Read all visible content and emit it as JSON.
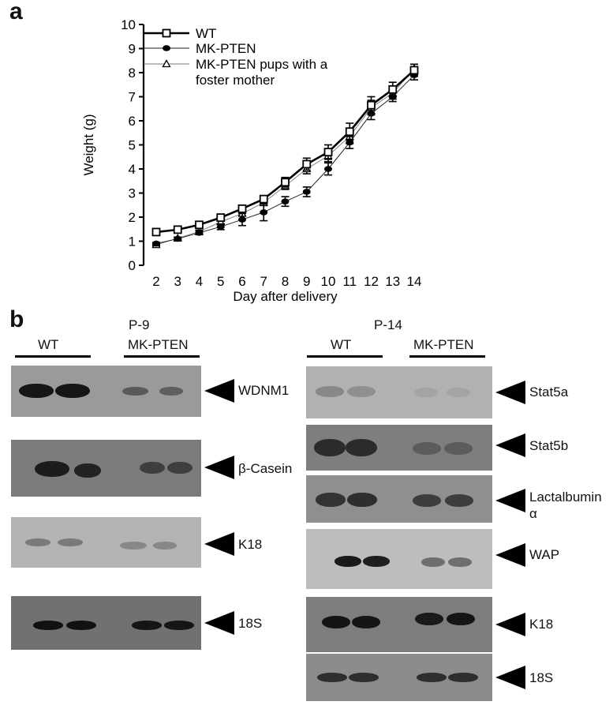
{
  "panel_a": {
    "letter": "a"
  },
  "panel_b": {
    "letter": "b",
    "p9": {
      "title": "P-9",
      "groups": [
        "WT",
        "MK-PTEN"
      ],
      "blots": [
        {
          "label": "WDNM1"
        },
        {
          "label": "β-Casein"
        },
        {
          "label": "K18"
        },
        {
          "label": "18S"
        }
      ]
    },
    "p14": {
      "title": "P-14",
      "groups": [
        "WT",
        "MK-PTEN"
      ],
      "blots": [
        {
          "label": "Stat5a"
        },
        {
          "label": "Stat5b"
        },
        {
          "label": "Lactalbumin",
          "label2": "α"
        },
        {
          "label": "WAP"
        },
        {
          "label": "K18"
        },
        {
          "label": "18S"
        }
      ]
    }
  },
  "chart_data": {
    "type": "line",
    "xlabel": "Day after delivery",
    "ylabel": "Weight (g)",
    "x": [
      2,
      3,
      4,
      5,
      6,
      7,
      8,
      9,
      10,
      11,
      12,
      13,
      14
    ],
    "xlim": [
      2,
      14
    ],
    "ylim": [
      0,
      10
    ],
    "yticks": [
      0,
      1,
      2,
      3,
      4,
      5,
      6,
      7,
      8,
      9,
      10
    ],
    "legend_position": "top-left",
    "series": [
      {
        "name": "WT",
        "marker": "open-square",
        "values": [
          1.38,
          1.48,
          1.68,
          1.98,
          2.35,
          2.75,
          3.45,
          4.2,
          4.7,
          5.55,
          6.65,
          7.3,
          8.1
        ],
        "errors": [
          0.05,
          0.05,
          0.06,
          0.08,
          0.1,
          0.12,
          0.2,
          0.25,
          0.3,
          0.35,
          0.35,
          0.3,
          0.25
        ]
      },
      {
        "name": "MK-PTEN",
        "marker": "filled-circle",
        "values": [
          0.9,
          1.1,
          1.35,
          1.6,
          1.9,
          2.2,
          2.65,
          3.05,
          4.0,
          5.1,
          6.3,
          7.0,
          7.9
        ],
        "errors": [
          0.05,
          0.06,
          0.08,
          0.12,
          0.25,
          0.35,
          0.2,
          0.2,
          0.25,
          0.25,
          0.25,
          0.2,
          0.2
        ]
      },
      {
        "name": "MK-PTEN pups with a foster mother",
        "marker": "open-triangle",
        "values": [
          0.85,
          1.12,
          1.4,
          1.8,
          2.15,
          2.6,
          3.3,
          4.0,
          4.55,
          5.35,
          6.55,
          7.15,
          8.15
        ],
        "errors": [
          0.05,
          0.05,
          0.06,
          0.08,
          0.1,
          0.12,
          0.15,
          0.2,
          0.25,
          0.3,
          0.3,
          0.25,
          0.2
        ]
      }
    ]
  }
}
